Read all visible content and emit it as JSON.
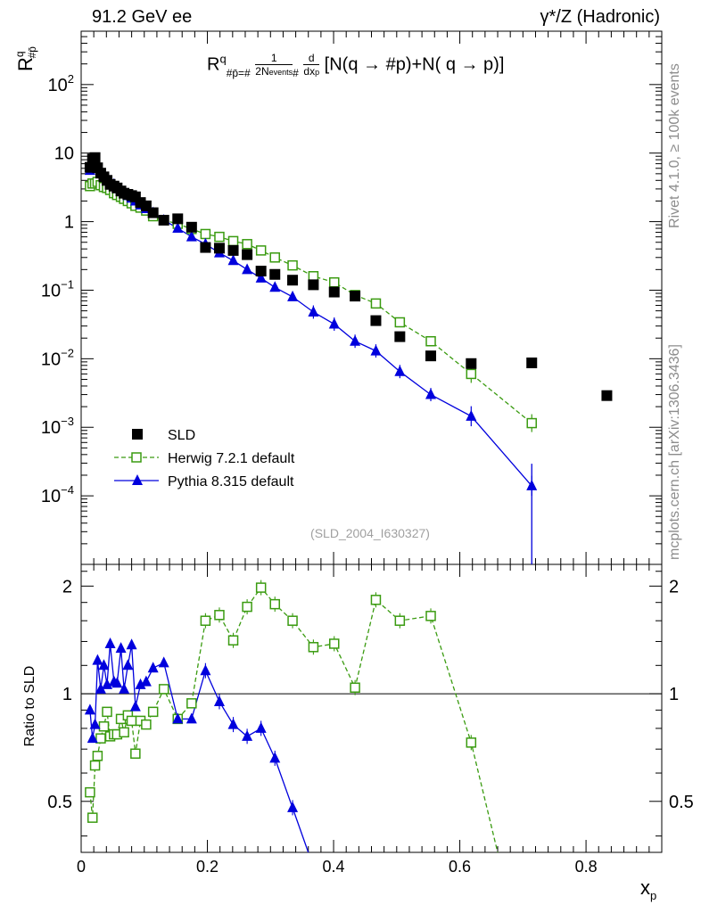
{
  "header": {
    "left": "91.2 GeV ee",
    "right": "γ*/Z (Hadronic)"
  },
  "side_labels": {
    "rivet": "Rivet 4.1.0, ≥ 100k events",
    "mcplots": "mcplots.cern.ch [arXiv:1306.3436]"
  },
  "formula": {
    "R": "R",
    "sup_q": "q",
    "sub": "#p̄=#",
    "frac1_num": "1",
    "frac1_den": "2N",
    "frac1_den_sub": "events",
    "hash": "#",
    "frac2_num": "d",
    "frac2_den": "dx",
    "frac2_den_sub": "p",
    "tail": "[N(q →  #p)+N( q →  p)]"
  },
  "watermark": "(SLD_2004_I630327)",
  "ylabel_top": {
    "base": "R",
    "sup": "q",
    "sub": "#p̄"
  },
  "ylabel_bottom": "Ratio to SLD",
  "xlabel": {
    "base": "x",
    "sub": "p"
  },
  "legend": [
    {
      "label": "SLD",
      "style": "data"
    },
    {
      "label": "Herwig 7.2.1 default",
      "style": "herwig"
    },
    {
      "label": "Pythia 8.315 default",
      "style": "pythia"
    }
  ],
  "colors": {
    "herwig": "#3a9b10",
    "pythia": "#0000dd",
    "data": "#000000"
  },
  "chart_data": [
    {
      "type": "scatter",
      "panel": "main",
      "xlim": [
        0,
        0.92
      ],
      "ylim_log": [
        1e-05,
        600
      ],
      "yscale": "log",
      "x_ticks": [
        0,
        0.2,
        0.4,
        0.6,
        0.8
      ],
      "y_tick_labels": [
        {
          "v": 100,
          "base": "10",
          "exp": "2"
        },
        {
          "v": 10,
          "base": "10",
          "exp": ""
        },
        {
          "v": 1,
          "base": "1",
          "exp": ""
        },
        {
          "v": 0.1,
          "base": "10",
          "exp": "−1"
        },
        {
          "v": 0.01,
          "base": "10",
          "exp": "−2"
        },
        {
          "v": 0.001,
          "base": "10",
          "exp": "−3"
        },
        {
          "v": 0.0001,
          "base": "10",
          "exp": "−4"
        }
      ],
      "series": [
        {
          "name": "SLD",
          "marker": "square",
          "points": [
            [
              0.014,
              6.2
            ],
            [
              0.018,
              8.2
            ],
            [
              0.022,
              8.6
            ],
            [
              0.026,
              6.1
            ],
            [
              0.031,
              5.1
            ],
            [
              0.036,
              4.5
            ],
            [
              0.041,
              4.0
            ],
            [
              0.046,
              3.5
            ],
            [
              0.052,
              3.3
            ],
            [
              0.057,
              3.1
            ],
            [
              0.063,
              2.8
            ],
            [
              0.068,
              2.6
            ],
            [
              0.074,
              2.5
            ],
            [
              0.08,
              2.4
            ],
            [
              0.086,
              2.3
            ],
            [
              0.094,
              1.9
            ],
            [
              0.103,
              1.7
            ],
            [
              0.114,
              1.35
            ],
            [
              0.131,
              1.05
            ],
            [
              0.153,
              1.1
            ],
            [
              0.175,
              0.83
            ],
            [
              0.197,
              0.42
            ],
            [
              0.219,
              0.41
            ],
            [
              0.241,
              0.38
            ],
            [
              0.263,
              0.33
            ],
            [
              0.285,
              0.19
            ],
            [
              0.307,
              0.17
            ],
            [
              0.335,
              0.14
            ],
            [
              0.368,
              0.12
            ],
            [
              0.401,
              0.094
            ],
            [
              0.434,
              0.082
            ],
            [
              0.467,
              0.036
            ],
            [
              0.505,
              0.021
            ],
            [
              0.554,
              0.011
            ],
            [
              0.618,
              0.0085
            ],
            [
              0.714,
              0.0087
            ],
            [
              0.833,
              0.0029
            ]
          ]
        },
        {
          "name": "Herwig 7.2.1 default",
          "marker": "open-square",
          "points": [
            [
              0.014,
              3.3
            ],
            [
              0.018,
              3.6
            ],
            [
              0.022,
              3.6
            ],
            [
              0.026,
              3.8
            ],
            [
              0.031,
              3.4
            ],
            [
              0.036,
              3.2
            ],
            [
              0.041,
              3.1
            ],
            [
              0.046,
              2.9
            ],
            [
              0.052,
              2.6
            ],
            [
              0.057,
              2.45
            ],
            [
              0.063,
              2.3
            ],
            [
              0.068,
              2.15
            ],
            [
              0.074,
              2.0
            ],
            [
              0.08,
              1.85
            ],
            [
              0.086,
              1.7
            ],
            [
              0.094,
              1.6
            ],
            [
              0.103,
              1.45
            ],
            [
              0.114,
              1.2
            ],
            [
              0.131,
              1.05
            ],
            [
              0.153,
              0.93
            ],
            [
              0.175,
              0.78
            ],
            [
              0.197,
              0.66
            ],
            [
              0.219,
              0.6
            ],
            [
              0.241,
              0.52
            ],
            [
              0.263,
              0.47
            ],
            [
              0.285,
              0.38
            ],
            [
              0.307,
              0.3
            ],
            [
              0.335,
              0.23
            ],
            [
              0.368,
              0.16
            ],
            [
              0.401,
              0.13
            ],
            [
              0.434,
              0.085
            ],
            [
              0.467,
              0.064
            ],
            [
              0.505,
              0.034
            ],
            [
              0.554,
              0.018
            ],
            [
              0.618,
              0.006
            ],
            [
              0.714,
              0.00115
            ]
          ]
        },
        {
          "name": "Pythia 8.315 default",
          "marker": "triangle",
          "points": [
            [
              0.014,
              5.6
            ],
            [
              0.018,
              6.2
            ],
            [
              0.022,
              6.3
            ],
            [
              0.026,
              6.0
            ],
            [
              0.031,
              5.6
            ],
            [
              0.036,
              4.9
            ],
            [
              0.041,
              4.3
            ],
            [
              0.046,
              3.9
            ],
            [
              0.052,
              3.5
            ],
            [
              0.057,
              3.1
            ],
            [
              0.063,
              2.9
            ],
            [
              0.068,
              2.6
            ],
            [
              0.074,
              2.4
            ],
            [
              0.08,
              2.2
            ],
            [
              0.086,
              2.0
            ],
            [
              0.094,
              1.75
            ],
            [
              0.103,
              1.55
            ],
            [
              0.114,
              1.35
            ],
            [
              0.131,
              1.05
            ],
            [
              0.153,
              0.8
            ],
            [
              0.175,
              0.6
            ],
            [
              0.197,
              0.47
            ],
            [
              0.219,
              0.35
            ],
            [
              0.241,
              0.27
            ],
            [
              0.263,
              0.2
            ],
            [
              0.285,
              0.15
            ],
            [
              0.307,
              0.11
            ],
            [
              0.335,
              0.08
            ],
            [
              0.368,
              0.048
            ],
            [
              0.401,
              0.032
            ],
            [
              0.434,
              0.018
            ],
            [
              0.467,
              0.013
            ],
            [
              0.505,
              0.0065
            ],
            [
              0.554,
              0.003
            ],
            [
              0.618,
              0.00145
            ],
            [
              0.714,
              0.00014
            ]
          ]
        }
      ]
    },
    {
      "type": "line",
      "panel": "ratio",
      "xlim": [
        0,
        0.92
      ],
      "ylim": [
        0.36,
        2.3
      ],
      "yscale": "log",
      "y_ticks": [
        0.5,
        1,
        2
      ],
      "y_tick_labels": [
        "0.5",
        "1",
        "2"
      ],
      "reference": 1,
      "series": [
        {
          "name": "Herwig 7.2.1 default",
          "x": [
            0.014,
            0.018,
            0.022,
            0.026,
            0.031,
            0.036,
            0.041,
            0.046,
            0.052,
            0.057,
            0.063,
            0.068,
            0.074,
            0.08,
            0.086,
            0.094,
            0.103,
            0.114,
            0.131,
            0.153,
            0.175,
            0.197,
            0.219,
            0.241,
            0.263,
            0.285,
            0.307,
            0.335,
            0.368,
            0.401,
            0.434,
            0.467,
            0.505,
            0.554,
            0.618,
            0.66
          ],
          "values": [
            0.53,
            0.45,
            0.63,
            0.67,
            0.75,
            0.81,
            0.89,
            0.76,
            0.77,
            0.77,
            0.85,
            0.78,
            0.87,
            0.84,
            0.68,
            0.84,
            0.82,
            0.89,
            1.03,
            0.85,
            0.94,
            1.6,
            1.66,
            1.41,
            1.75,
            1.98,
            1.78,
            1.6,
            1.35,
            1.38,
            1.04,
            1.83,
            1.6,
            1.65,
            0.73,
            0.36
          ]
        },
        {
          "name": "Pythia 8.315 default",
          "x": [
            0.014,
            0.018,
            0.022,
            0.026,
            0.031,
            0.036,
            0.041,
            0.046,
            0.052,
            0.057,
            0.063,
            0.068,
            0.074,
            0.08,
            0.086,
            0.094,
            0.103,
            0.114,
            0.131,
            0.153,
            0.175,
            0.197,
            0.219,
            0.241,
            0.263,
            0.285,
            0.307,
            0.335,
            0.36
          ],
          "values": [
            0.9,
            0.75,
            0.82,
            1.24,
            1.03,
            1.2,
            1.06,
            1.38,
            1.08,
            1.07,
            1.34,
            1.03,
            1.2,
            1.37,
            0.92,
            1.06,
            1.08,
            1.18,
            1.22,
            0.85,
            0.85,
            1.16,
            0.95,
            0.82,
            0.76,
            0.8,
            0.66,
            0.48,
            0.36
          ]
        }
      ]
    }
  ]
}
